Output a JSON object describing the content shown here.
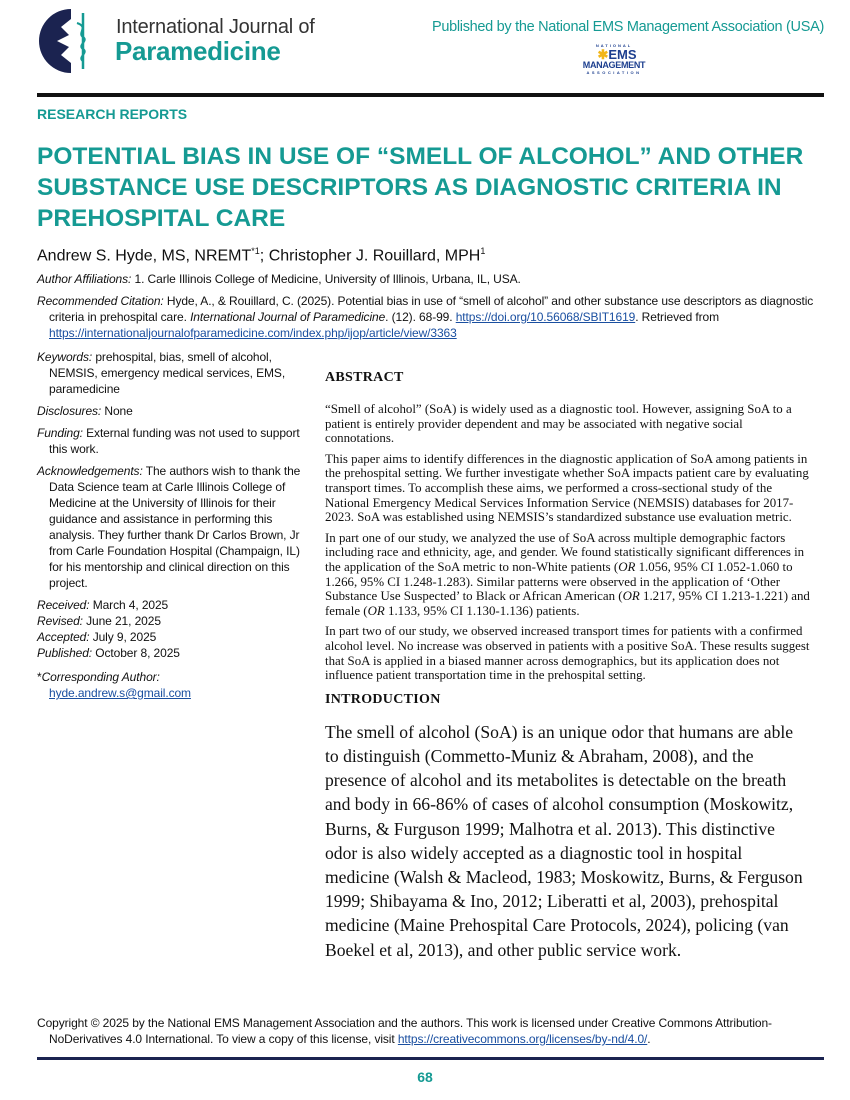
{
  "header": {
    "journal_line1": "International Journal of",
    "journal_line2": "Paramedicine",
    "publisher": "Published by the National EMS Management Association (USA)",
    "publisher_logo_text": [
      "NATIONAL",
      "EMS",
      "MANAGEMENT",
      "ASSOCIATION"
    ],
    "colors": {
      "teal": "#159a93",
      "navy": "#1b2350",
      "gold": "#f2b619",
      "blue": "#1d3f8f"
    }
  },
  "section_label": "RESEARCH REPORTS",
  "title": "POTENTIAL BIAS IN USE OF “SMELL OF ALCOHOL” AND OTHER SUBSTANCE USE DESCRIPTORS AS DIAGNOSTIC CRITERIA IN PREHOSPITAL CARE",
  "authors": {
    "a1": "Andrew S. Hyde, MS, NREMT",
    "a1_sup": "*1",
    "sep": "; ",
    "a2": "Christopher J. Rouillard, MPH",
    "a2_sup": "1"
  },
  "affiliations": {
    "label": "Author Affiliations:",
    "text": " 1. Carle Illinois College of Medicine, University of Illinois, Urbana, IL, USA."
  },
  "citation": {
    "label": "Recommended Citation:",
    "text1": " Hyde, A., & Rouillard, C. (2025). Potential bias in use of “smell of alcohol” and other substance use descriptors as diagnostic criteria in prehospital care. ",
    "journal": "International Journal of Paramedicine",
    "text2": ". (12). 68-99. ",
    "doi": "https://doi.org/10.56068/SBIT1619",
    "text3": ". Retrieved from ",
    "url": "https://internationaljournalofparamedicine.com/index.php/ijop/article/view/3363"
  },
  "sidebar": {
    "keywords": {
      "label": "Keywords:",
      "text": " prehospital, bias, smell of alcohol, NEMSIS, emergency medical services, EMS, paramedicine"
    },
    "disclosures": {
      "label": "Disclosures:",
      "text": " None"
    },
    "funding": {
      "label": "Funding:",
      "text": " External funding was not used to support this work."
    },
    "acknowledgements": {
      "label": "Acknowledgements:",
      "text": " The authors wish to thank the Data Science team at Carle Illinois College of Medicine at the University of Illinois for their guidance and assistance in performing this analysis. They further thank Dr Carlos Brown, Jr from Carle Foundation Hospital (Champaign, IL) for his mentorship and clinical direction on this project."
    },
    "received": {
      "label": "Received:",
      "text": " March 4, 2025"
    },
    "revised": {
      "label": "Revised:",
      "text": " June 21, 2025"
    },
    "accepted": {
      "label": "Accepted:",
      "text": " July 9, 2025"
    },
    "published": {
      "label": "Published:",
      "text": " October 8, 2025"
    },
    "corresponding": {
      "star": "*",
      "label": "Corresponding Author:",
      "email": "hyde.andrew.s@gmail.com"
    }
  },
  "abstract": {
    "heading": "ABSTRACT",
    "p1": "“Smell of alcohol” (SoA) is widely used as a diagnostic tool. However, assigning SoA to a patient is entirely provider dependent and may be associated with negative social connotations.",
    "p2": "This paper aims to identify differences in the diagnostic application of SoA among patients in the prehospital setting. We further investigate whether SoA impacts patient care by evaluating transport times. To accomplish these aims, we performed a cross-sectional study of the National Emergency Medical Services Information Service (NEMSIS) databases for 2017-2023. SoA was established using NEMSIS’s standardized substance use evaluation metric.",
    "p3a": "In part one of our study, we analyzed the use of SoA across multiple demographic factors including race and ethnicity, age, and gender. We found statistically significant differences in the application of the SoA metric to non-White patients (",
    "or": "OR",
    "p3b": " 1.056, 95% CI 1.052-1.060 to 1.266, 95% CI 1.248-1.283). Similar patterns were observed in the application of ‘Other Substance Use Suspected’ to Black or African American (",
    "p3c": " 1.217, 95% CI 1.213-1.221) and female (",
    "p3d": " 1.133, 95% CI 1.130-1.136) patients.",
    "p4": "In part two of our study, we observed increased transport times for patients with a confirmed alcohol level. No increase was observed in patients with a positive SoA. These results suggest that SoA is applied in a biased manner across demographics, but its application does not influence patient transportation time in the prehospital setting."
  },
  "introduction": {
    "heading": "INTRODUCTION",
    "p1": "The smell of alcohol (SoA) is an unique odor that humans are able to distinguish (Commetto-Muniz & Abraham, 2008), and the presence of alcohol and its metabolites is detectable on the breath and body in 66-86% of cases of alcohol consumption (Moskowitz, Burns, & Furguson 1999; Malhotra et al. 2013). This distinctive odor is also widely accepted as a diagnostic tool in hospital medicine (Walsh & Macleod, 1983; Moskowitz, Burns, & Ferguson 1999; Shibayama & Ino, 2012; Liberatti et al, 2003), prehospital medicine (Maine Prehospital Care Protocols, 2024), policing (van Boekel et al, 2013), and other public service work."
  },
  "footer": {
    "copyright": "Copyright © 2025 by the National EMS Management Association and the authors. This work is licensed under Creative Commons Attribution-NoDerivatives 4.0 International. To view a copy of this license, visit ",
    "license_url": "https://creativecommons.org/licenses/by-nd/4.0/",
    "end": ".",
    "page_number": "68"
  }
}
